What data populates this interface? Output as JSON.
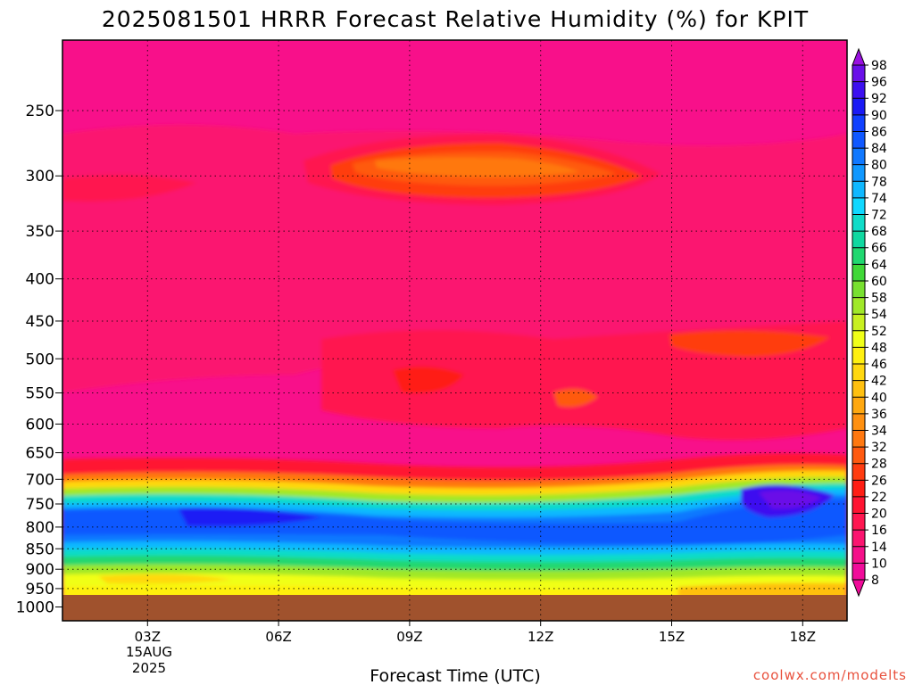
{
  "chart_data": {
    "type": "heatmap",
    "title": "2025081501 HRRR Forecast Relative Humidity (%) for KPIT",
    "xlabel": "Forecast Time (UTC)",
    "ylabel": "",
    "x_ticks": [
      "03Z",
      "06Z",
      "09Z",
      "12Z",
      "15Z",
      "18Z"
    ],
    "x_date_label": [
      "15AUG",
      "2025"
    ],
    "y_ticks": [
      250,
      300,
      350,
      400,
      450,
      500,
      550,
      600,
      650,
      700,
      750,
      800,
      850,
      900,
      950,
      1000
    ],
    "y_scale": "log",
    "ylim": [
      1000,
      200
    ],
    "grid": true,
    "colorbar": {
      "label": "",
      "levels": [
        8,
        10,
        14,
        16,
        20,
        22,
        26,
        28,
        32,
        34,
        36,
        40,
        42,
        46,
        48,
        52,
        54,
        58,
        60,
        64,
        66,
        68,
        72,
        74,
        78,
        80,
        84,
        86,
        90,
        92,
        96,
        98
      ],
      "colors": [
        "#f00c9a",
        "#f5108a",
        "#fb1470",
        "#ff1650",
        "#ff1432",
        "#ff1e14",
        "#ff3c10",
        "#ff5a10",
        "#ff7810",
        "#ff9010",
        "#ffa810",
        "#ffc010",
        "#ffd810",
        "#fff010",
        "#f0ff18",
        "#c8f020",
        "#a0e828",
        "#78e030",
        "#40d838",
        "#20d870",
        "#10d8a0",
        "#10dcc8",
        "#10d8ff",
        "#10b8ff",
        "#1098ff",
        "#1078ff",
        "#1058ff",
        "#1040ff",
        "#1a1af5",
        "#3c10f0",
        "#6a10e8",
        "#9a10e0"
      ]
    },
    "fields": {
      "background_rh": "10-16",
      "dry_layer_rh": "20-28",
      "moist_layer_rh": "60-96",
      "surface_masked": "below ground"
    }
  },
  "credit": "coolwx.com/modelts"
}
